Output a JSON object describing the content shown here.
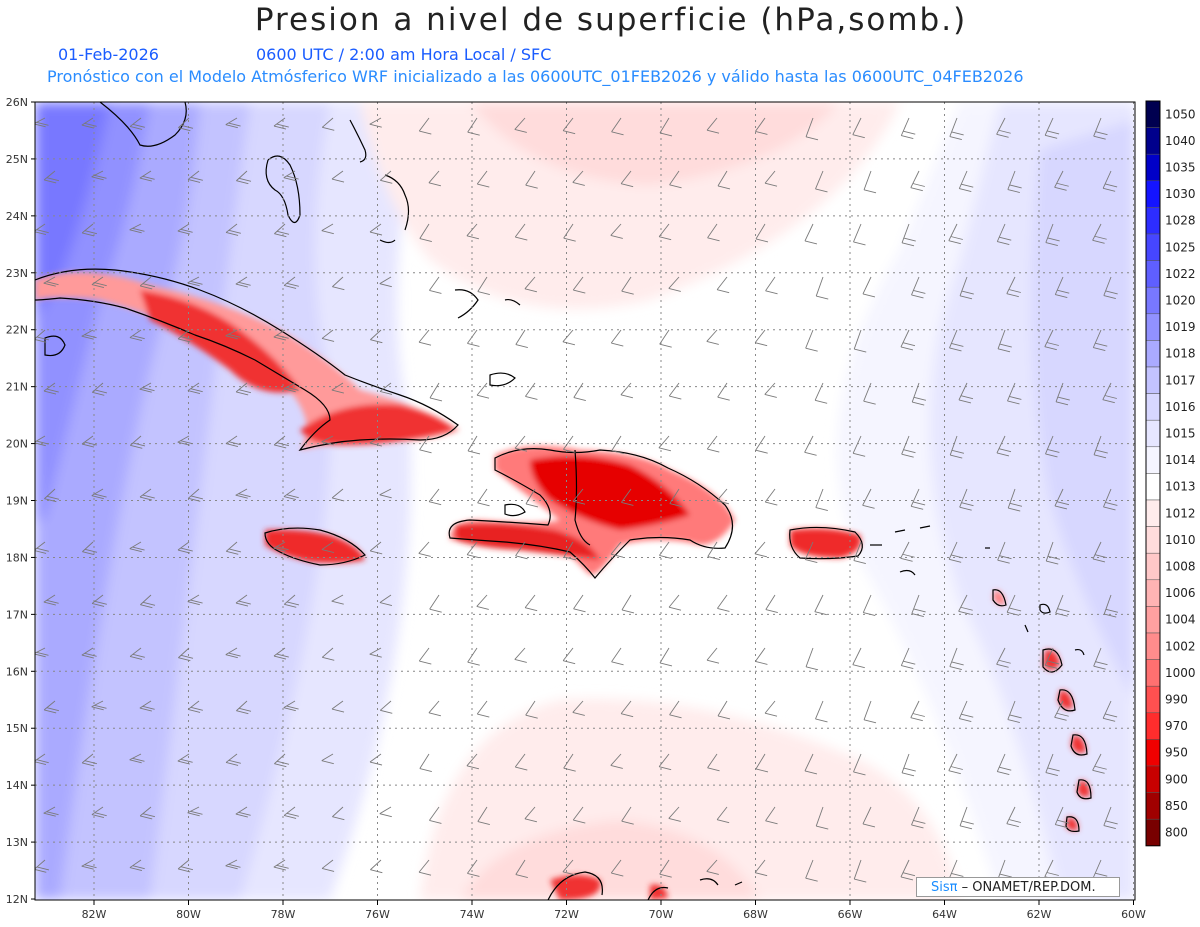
{
  "header": {
    "title": "Presion a nivel de superficie (hPa,somb.)",
    "date": "01-Feb-2026",
    "time_line": "0600 UTC / 2:00 am Hora Local / SFC",
    "forecast_line": "Pronóstico con el Modelo Atmósferico WRF inicializado a las 0600UTC_01FEB2026 y válido hasta las  0600UTC_04FEB2026"
  },
  "axes": {
    "lon_labels": [
      "82W",
      "80W",
      "78W",
      "76W",
      "74W",
      "72W",
      "70W",
      "68W",
      "66W",
      "64W",
      "62W",
      "60W"
    ],
    "lat_labels": [
      "26N",
      "25N",
      "24N",
      "23N",
      "22N",
      "21N",
      "20N",
      "19N",
      "18N",
      "17N",
      "16N",
      "15N",
      "14N",
      "13N",
      "12N"
    ]
  },
  "colorbar": {
    "levels": [
      "1050",
      "1040",
      "1035",
      "1030",
      "1028",
      "1025",
      "1022",
      "1020",
      "1019",
      "1018",
      "1017",
      "1016",
      "1015",
      "1014",
      "1013",
      "1012",
      "1010",
      "1008",
      "1006",
      "1004",
      "1002",
      "1000",
      "990",
      "970",
      "950",
      "900",
      "850",
      "800"
    ],
    "colors": [
      "#000050",
      "#00008c",
      "#0000c8",
      "#1414ff",
      "#2d2dff",
      "#4646ff",
      "#5f5fff",
      "#7878ff",
      "#9191ff",
      "#aaaaff",
      "#c3c3ff",
      "#d7d7ff",
      "#e6e6ff",
      "#f5f5ff",
      "#ffffff",
      "#ffecec",
      "#ffdcdc",
      "#ffc8c8",
      "#ffb4b4",
      "#ffa0a0",
      "#ff8c8c",
      "#ff7070",
      "#ff5050",
      "#ff2d2d",
      "#f00000",
      "#c80000",
      "#a00000",
      "#780000"
    ]
  },
  "credit": {
    "brand": "Sisπ",
    "org": "– ONAMET/REP.DOM."
  }
}
